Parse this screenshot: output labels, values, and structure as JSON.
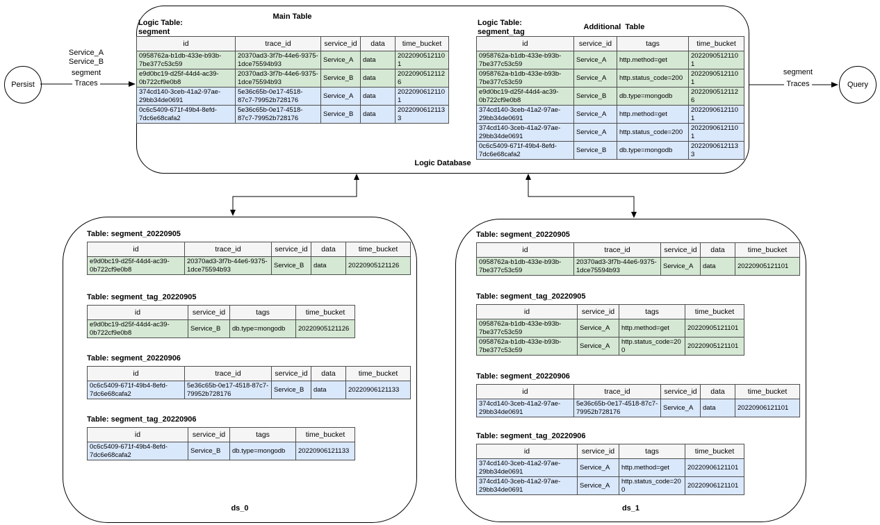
{
  "colors": {
    "row_green": "#d5e8d4",
    "row_blue": "#dae8fc",
    "header_bg": "#f5f5f5",
    "line": "#000000"
  },
  "nodes": {
    "persist": "Persist",
    "query": "Query"
  },
  "edges": {
    "left": {
      "line1": "Service_A",
      "line2": "Service_B",
      "line3": "segment",
      "line4": "Traces"
    },
    "right": {
      "line1": "segment",
      "line2": "Traces"
    }
  },
  "logic_database": {
    "label": "Logic Database",
    "main_table": {
      "title": "Main Table",
      "logic_label_line1": "Logic Table:",
      "logic_label_line2": "segment",
      "columns": [
        "id",
        "trace_id",
        "service_id",
        "data",
        "time_bucket"
      ],
      "rows": [
        {
          "tint": "green",
          "cells": [
            "0958762a-b1db-433e-b93b-7be377c53c59",
            "20370ad3-3f7b-44e6-9375-1dce75594b93",
            "Service_A",
            "data",
            "20220905121101"
          ]
        },
        {
          "tint": "green",
          "cells": [
            "e9d0bc19-d25f-44d4-ac39-0b722cf9e0b8",
            "20370ad3-3f7b-44e6-9375-1dce75594b93",
            "Service_B",
            "data",
            "20220905121126"
          ]
        },
        {
          "tint": "blue",
          "cells": [
            "374cd140-3ceb-41a2-97ae-29bb34de0691",
            "5e36c65b-0e17-4518-87c7-79952b728176",
            "Service_A",
            "data",
            "20220906121101"
          ]
        },
        {
          "tint": "blue",
          "cells": [
            "0c6c5409-671f-49b4-8efd-7dc6e68cafa2",
            "5e36c65b-0e17-4518-87c7-79952b728176",
            "Service_B",
            "data",
            "20220906121133"
          ]
        }
      ]
    },
    "additional_table": {
      "title": "Additional  Table",
      "logic_label_line1": "Logic Table:",
      "logic_label_line2": "segment_tag",
      "columns": [
        "id",
        "service_id",
        "tags",
        "time_bucket"
      ],
      "rows": [
        {
          "tint": "green",
          "cells": [
            "0958762a-b1db-433e-b93b-7be377c53c59",
            "Service_A",
            "http.method=get",
            "20220905121101"
          ]
        },
        {
          "tint": "green",
          "cells": [
            "0958762a-b1db-433e-b93b-7be377c53c59",
            "Service_A",
            "http.status_code=200",
            "20220905121101"
          ]
        },
        {
          "tint": "green",
          "cells": [
            "e9d0bc19-d25f-44d4-ac39-0b722cf9e0b8",
            "Service_B",
            "db.type=mongodb",
            "20220905121126"
          ]
        },
        {
          "tint": "blue",
          "cells": [
            "374cd140-3ceb-41a2-97ae-29bb34de0691",
            "Service_A",
            "http.method=get",
            "20220906121101"
          ]
        },
        {
          "tint": "blue",
          "cells": [
            "374cd140-3ceb-41a2-97ae-29bb34de0691",
            "Service_A",
            "http.status_code=200",
            "20220906121101"
          ]
        },
        {
          "tint": "blue",
          "cells": [
            "0c6c5409-671f-49b4-8efd-7dc6e68cafa2",
            "Service_B",
            "db.type=mongodb",
            "20220906121133"
          ]
        }
      ]
    }
  },
  "ds_0": {
    "label": "ds_0",
    "tables": [
      {
        "title": "Table: segment_20220905",
        "columns": [
          "id",
          "trace_id",
          "service_id",
          "data",
          "time_bucket"
        ],
        "rows": [
          {
            "tint": "green",
            "cells": [
              "e9d0bc19-d25f-44d4-ac39-0b722cf9e0b8",
              "20370ad3-3f7b-44e6-9375-1dce75594b93",
              "Service_B",
              "data",
              "20220905121126"
            ]
          }
        ]
      },
      {
        "title": "Table: segment_tag_20220905",
        "columns": [
          "id",
          "service_id",
          "tags",
          "time_bucket"
        ],
        "rows": [
          {
            "tint": "green",
            "cells": [
              "e9d0bc19-d25f-44d4-ac39-0b722cf9e0b8",
              "Service_B",
              "db.type=mongodb",
              "20220905121126"
            ]
          }
        ]
      },
      {
        "title": "Table: segment_20220906",
        "columns": [
          "id",
          "trace_id",
          "service_id",
          "data",
          "time_bucket"
        ],
        "rows": [
          {
            "tint": "blue",
            "cells": [
              "0c6c5409-671f-49b4-8efd-7dc6e68cafa2",
              "5e36c65b-0e17-4518-87c7-79952b728176",
              "Service_B",
              "data",
              "20220906121133"
            ]
          }
        ]
      },
      {
        "title": "Table: segment_tag_20220906",
        "columns": [
          "id",
          "service_id",
          "tags",
          "time_bucket"
        ],
        "rows": [
          {
            "tint": "blue",
            "cells": [
              "0c6c5409-671f-49b4-8efd-7dc6e68cafa2",
              "Service_B",
              "db.type=mongodb",
              "20220906121133"
            ]
          }
        ]
      }
    ]
  },
  "ds_1": {
    "label": "ds_1",
    "tables": [
      {
        "title": "Table: segment_20220905",
        "columns": [
          "id",
          "trace_id",
          "service_id",
          "data",
          "time_bucket"
        ],
        "rows": [
          {
            "tint": "green",
            "cells": [
              "0958762a-b1db-433e-b93b-7be377c53c59",
              "20370ad3-3f7b-44e6-9375-1dce75594b93",
              "Service_A",
              "data",
              "20220905121101"
            ]
          }
        ]
      },
      {
        "title": "Table: segment_tag_20220905",
        "columns": [
          "id",
          "service_id",
          "tags",
          "time_bucket"
        ],
        "rows": [
          {
            "tint": "green",
            "cells": [
              "0958762a-b1db-433e-b93b-7be377c53c59",
              "Service_A",
              "http.method=get",
              "20220905121101"
            ]
          },
          {
            "tint": "green",
            "cells": [
              "0958762a-b1db-433e-b93b-7be377c53c59",
              "Service_A",
              "http.status_code=200",
              "20220905121101"
            ]
          }
        ]
      },
      {
        "title": "Table: segment_20220906",
        "columns": [
          "id",
          "trace_id",
          "service_id",
          "data",
          "time_bucket"
        ],
        "rows": [
          {
            "tint": "blue",
            "cells": [
              "374cd140-3ceb-41a2-97ae-29bb34de0691",
              "5e36c65b-0e17-4518-87c7-79952b728176",
              "Service_A",
              "data",
              "20220906121101"
            ]
          }
        ]
      },
      {
        "title": "Table: segment_tag_20220906",
        "columns": [
          "id",
          "service_id",
          "tags",
          "time_bucket"
        ],
        "rows": [
          {
            "tint": "blue",
            "cells": [
              "374cd140-3ceb-41a2-97ae-29bb34de0691",
              "Service_A",
              "http.method=get",
              "20220906121101"
            ]
          },
          {
            "tint": "blue",
            "cells": [
              "374cd140-3ceb-41a2-97ae-29bb34de0691",
              "Service_A",
              "http.status_code=200",
              "20220906121101"
            ]
          }
        ]
      }
    ]
  }
}
